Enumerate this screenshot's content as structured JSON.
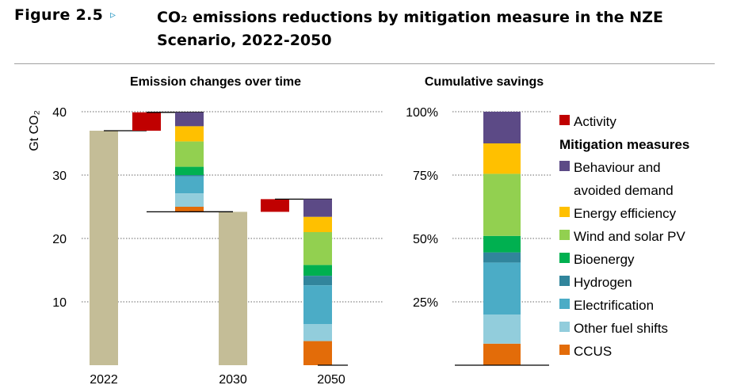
{
  "figure": {
    "label": "Figure 2.5",
    "arrow": "▹",
    "title": "CO₂ emissions reductions by mitigation measure in the NZE Scenario, 2022-2050"
  },
  "chart_data": [
    {
      "type": "bar",
      "title": "Emission changes over time",
      "ylabel": "Gt CO₂",
      "ylim": [
        0,
        40
      ],
      "yticks": [
        10,
        20,
        30,
        40
      ],
      "xticks": [
        "2022",
        "2030",
        "2050"
      ],
      "grid": "dotted horizontal",
      "totals": [
        {
          "name": "2022",
          "value": 37.0
        },
        {
          "name": "2030",
          "value": 24.2
        },
        {
          "name": "2050",
          "value": 0
        }
      ],
      "waterfall": [
        {
          "from_value": 37.0,
          "activity_increase": 2.9,
          "reductions": [
            {
              "series": "Behaviour and avoided demand",
              "value": 2.2
            },
            {
              "series": "Energy efficiency",
              "value": 2.4
            },
            {
              "series": "Wind and solar PV",
              "value": 4.0
            },
            {
              "series": "Bioenergy",
              "value": 1.3
            },
            {
              "series": "Hydrogen",
              "value": 0.2
            },
            {
              "series": "Electrification",
              "value": 2.7
            },
            {
              "series": "Other fuel shifts",
              "value": 2.1
            },
            {
              "series": "CCUS",
              "value": 0.8
            }
          ]
        },
        {
          "from_value": 24.2,
          "activity_increase": 2.0,
          "reductions": [
            {
              "series": "Behaviour and avoided demand",
              "value": 2.8
            },
            {
              "series": "Energy efficiency",
              "value": 2.4
            },
            {
              "series": "Wind and solar PV",
              "value": 5.2
            },
            {
              "series": "Bioenergy",
              "value": 1.7
            },
            {
              "series": "Hydrogen",
              "value": 1.5
            },
            {
              "series": "Electrification",
              "value": 6.1
            },
            {
              "series": "Other fuel shifts",
              "value": 2.7
            },
            {
              "series": "CCUS",
              "value": 3.8
            }
          ]
        }
      ]
    },
    {
      "type": "bar",
      "title": "Cumulative savings",
      "stacked": true,
      "ylim": [
        0,
        100
      ],
      "yticks": [
        "25%",
        "50%",
        "75%",
        "100%"
      ],
      "grid": "dotted horizontal",
      "segments": [
        {
          "series": "CCUS",
          "value": 8.5
        },
        {
          "series": "Other fuel shifts",
          "value": 11.5
        },
        {
          "series": "Electrification",
          "value": 20.5
        },
        {
          "series": "Hydrogen",
          "value": 4.0
        },
        {
          "series": "Bioenergy",
          "value": 6.5
        },
        {
          "series": "Wind and solar PV",
          "value": 24.5
        },
        {
          "series": "Energy efficiency",
          "value": 12.0
        },
        {
          "series": "Behaviour and avoided demand",
          "value": 12.5
        }
      ]
    }
  ],
  "legend": {
    "activity": {
      "label": "Activity",
      "color": "#c00000"
    },
    "heading": "Mitigation measures",
    "items": [
      {
        "series": "Behaviour and avoided demand",
        "lines": [
          "Behaviour and",
          "avoided demand"
        ],
        "color": "#5c4a86"
      },
      {
        "series": "Energy efficiency",
        "lines": [
          "Energy efficiency"
        ],
        "color": "#ffc000"
      },
      {
        "series": "Wind and solar PV",
        "lines": [
          "Wind and solar PV"
        ],
        "color": "#92d050"
      },
      {
        "series": "Bioenergy",
        "lines": [
          "Bioenergy"
        ],
        "color": "#00b050"
      },
      {
        "series": "Hydrogen",
        "lines": [
          "Hydrogen"
        ],
        "color": "#31859c"
      },
      {
        "series": "Electrification",
        "lines": [
          "Electrification"
        ],
        "color": "#4bacc6"
      },
      {
        "series": "Other fuel shifts",
        "lines": [
          "Other fuel shifts"
        ],
        "color": "#92cddc"
      },
      {
        "series": "CCUS",
        "lines": [
          "CCUS"
        ],
        "color": "#e36c09"
      }
    ],
    "total_color": "#c4bd97"
  }
}
